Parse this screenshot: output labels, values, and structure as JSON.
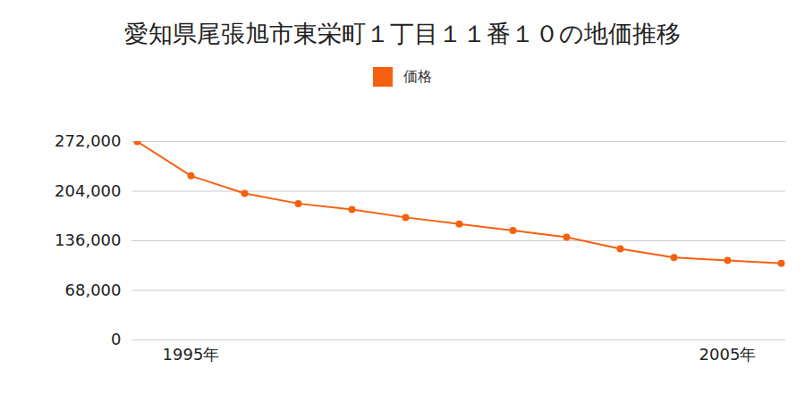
{
  "chart_data": {
    "type": "line",
    "title": "愛知県尾張旭市東栄町１丁目１１番１０の地価推移",
    "categories": [
      null,
      "1995年",
      null,
      null,
      null,
      null,
      null,
      null,
      null,
      null,
      null,
      "2005年",
      null
    ],
    "series": [
      {
        "name": "価格",
        "color": "#f5600f",
        "marker": "circle",
        "values": [
          272000,
          225000,
          201000,
          187000,
          179000,
          168000,
          159000,
          150000,
          141000,
          125000,
          113000,
          109000,
          105000
        ]
      }
    ],
    "ylim": [
      0,
      272000
    ],
    "yticks": [
      0,
      {
        "value": 68000,
        "label": "68,000"
      },
      {
        "value": 136000,
        "label": "136,000"
      },
      {
        "value": 204000,
        "label": "204,000"
      },
      {
        "value": 272000,
        "label": "272,000"
      }
    ],
    "grid": true,
    "legend": "top"
  }
}
